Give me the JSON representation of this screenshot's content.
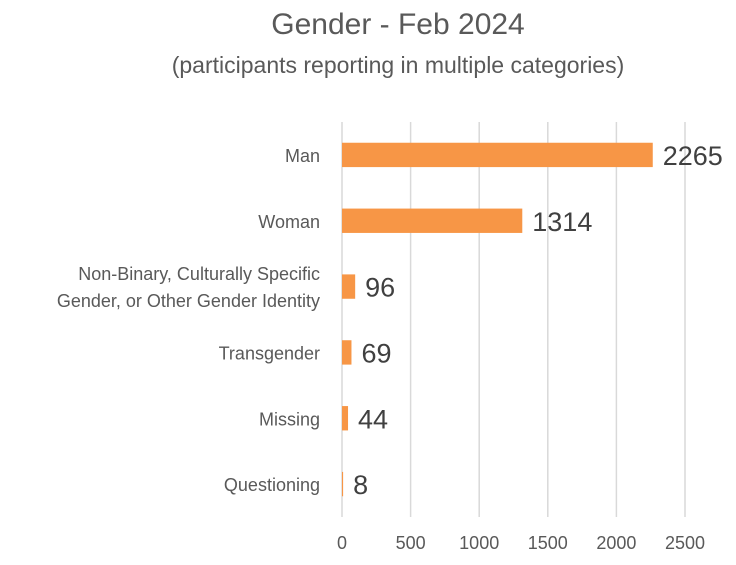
{
  "chart_data": {
    "type": "bar",
    "orientation": "horizontal",
    "title": "Gender - Feb 2024",
    "subtitle": "(participants reporting in multiple categories)",
    "categories": [
      [
        "Man"
      ],
      [
        "Woman"
      ],
      [
        "Non-Binary, Culturally Specific",
        "Gender, or Other Gender Identity"
      ],
      [
        "Transgender"
      ],
      [
        "Missing"
      ],
      [
        "Questioning"
      ]
    ],
    "values": [
      2265,
      1314,
      96,
      69,
      44,
      8
    ],
    "data_labels": [
      "2265",
      "1314",
      "96",
      "69",
      "44",
      "8"
    ],
    "xlim": [
      0,
      2500
    ],
    "xticks": [
      "0",
      "500",
      "1000",
      "1500",
      "2000",
      "2500"
    ],
    "grid": "vertical",
    "legend": "none",
    "bar_color": "#f79646"
  }
}
